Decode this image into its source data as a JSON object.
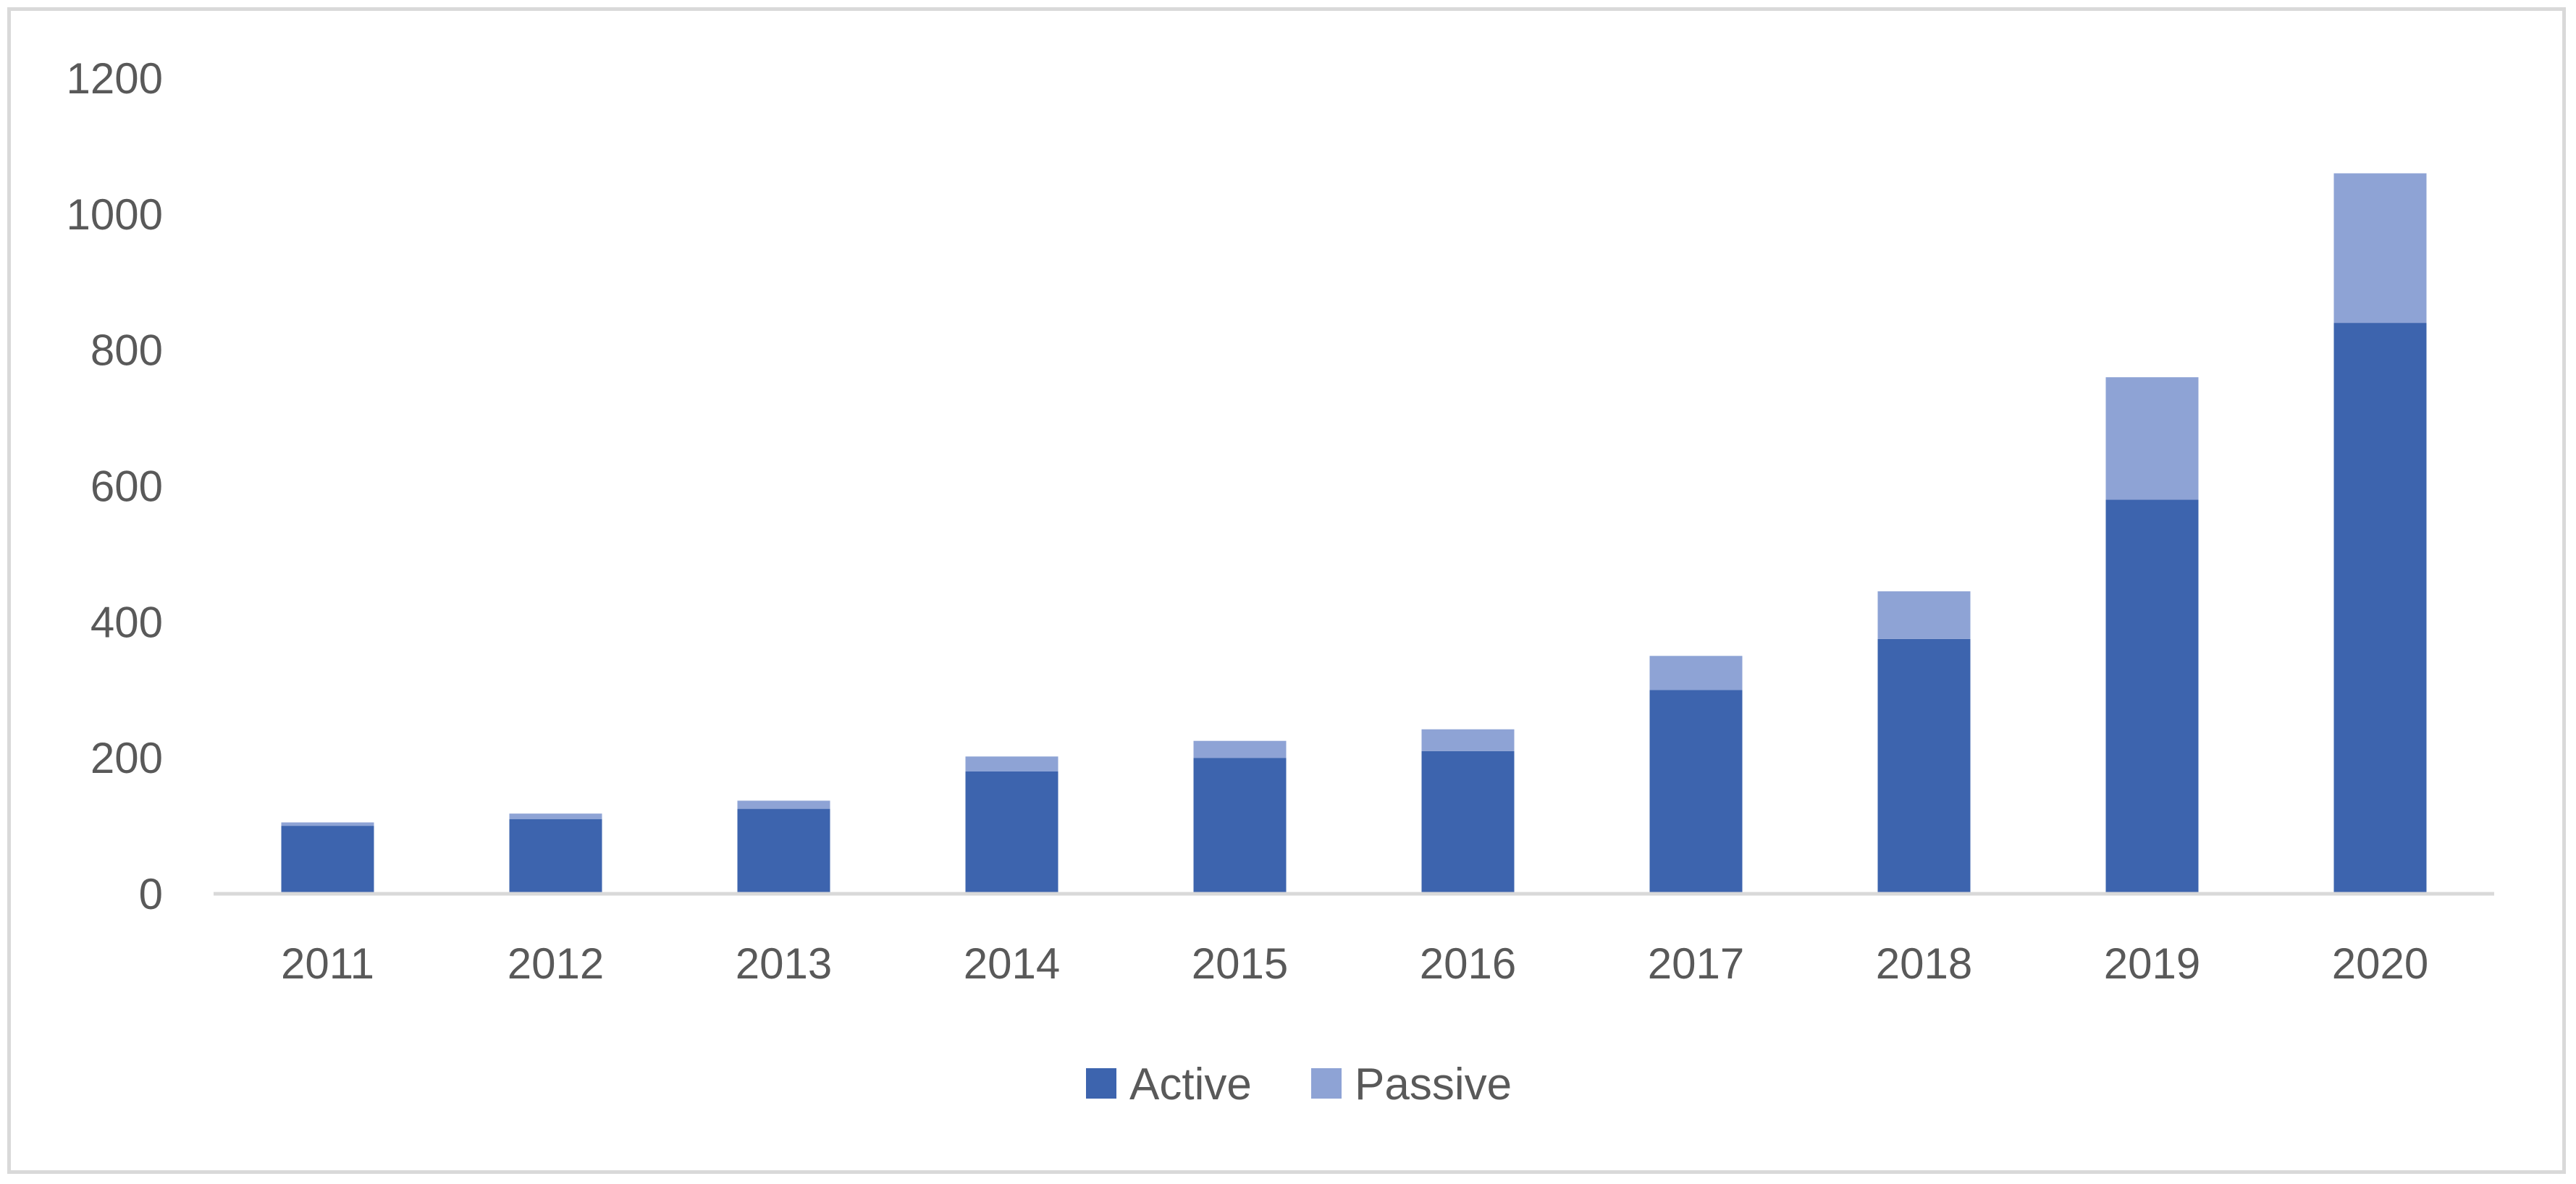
{
  "chart_data": {
    "type": "bar",
    "stacked": true,
    "title": "",
    "xlabel": "",
    "ylabel": "",
    "categories": [
      "2011",
      "2012",
      "2013",
      "2014",
      "2015",
      "2016",
      "2017",
      "2018",
      "2019",
      "2020"
    ],
    "series": [
      {
        "name": "Active",
        "color": "#3d64ae",
        "values": [
          100,
          110,
          125,
          180,
          200,
          210,
          300,
          375,
          580,
          840
        ]
      },
      {
        "name": "Passive",
        "color": "#8ea3d5",
        "values": [
          5,
          8,
          12,
          22,
          25,
          32,
          50,
          70,
          180,
          220
        ]
      }
    ],
    "ylim": [
      0,
      1200
    ],
    "yticks": [
      "0",
      "200",
      "400",
      "600",
      "800",
      "1000",
      "1200"
    ],
    "grid": false,
    "legend_position": "bottom"
  }
}
